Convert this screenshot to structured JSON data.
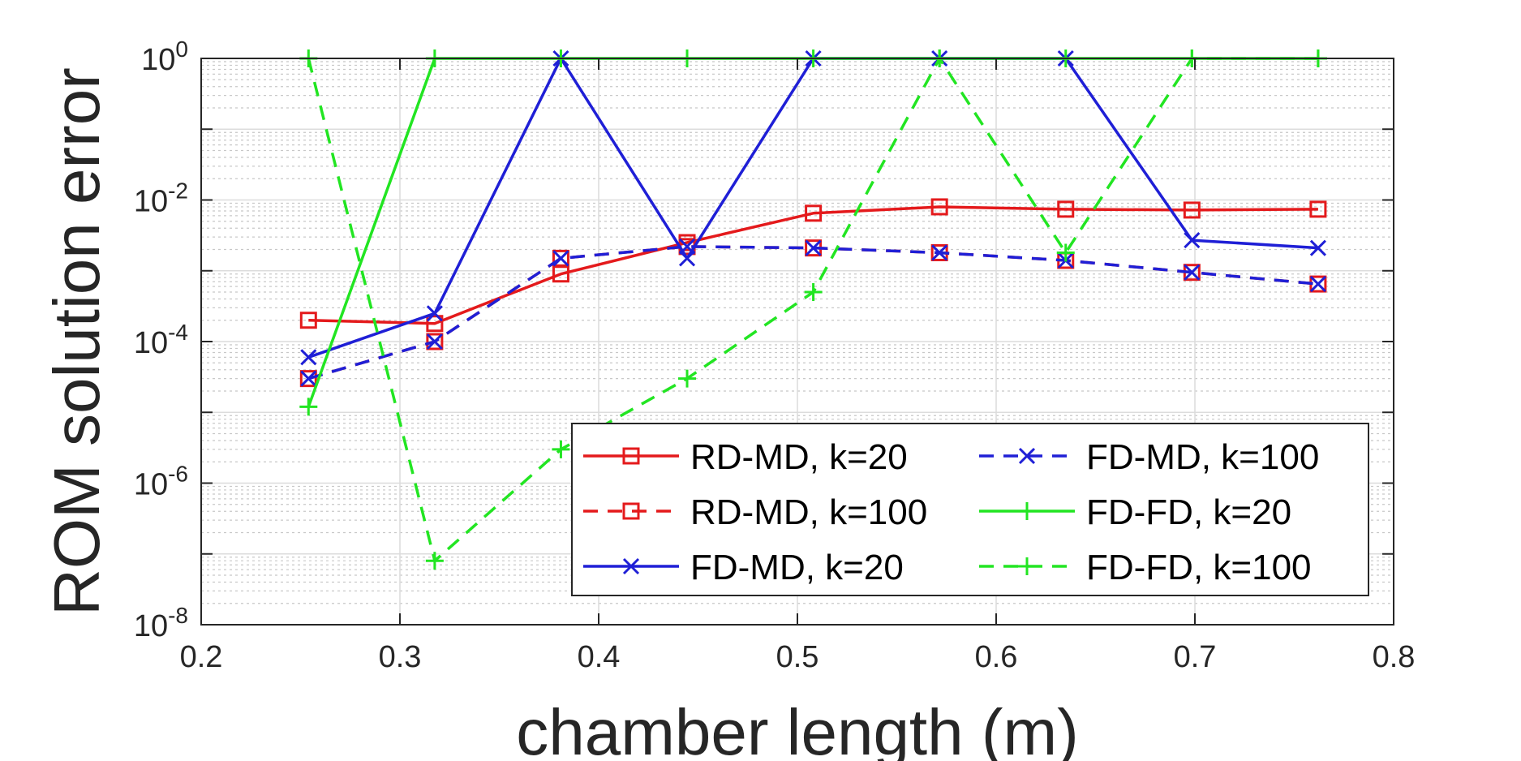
{
  "chart_data": {
    "type": "line",
    "xlabel": "chamber length (m)",
    "ylabel": "ROM solution error",
    "xlim": [
      0.2,
      0.8
    ],
    "ylim": [
      1e-08,
      1
    ],
    "yscale": "log",
    "grid": true,
    "minor_grid": true,
    "legend_position": "bottom-right",
    "legend_columns": 2,
    "x_ticks": [
      "0.2",
      "0.3",
      "0.4",
      "0.5",
      "0.6",
      "0.7",
      "0.8"
    ],
    "y_ticks": [
      {
        "base": "10",
        "exp": "0"
      },
      {
        "base": "10",
        "exp": "-2"
      },
      {
        "base": "10",
        "exp": "-4"
      },
      {
        "base": "10",
        "exp": "-6"
      },
      {
        "base": "10",
        "exp": "-8"
      }
    ],
    "x": [
      0.254,
      0.3175,
      0.381,
      0.4445,
      0.508,
      0.5715,
      0.635,
      0.6985,
      0.762
    ],
    "series": [
      {
        "name": "RD-MD, k=20",
        "color": "#e41a1c",
        "dash": "solid",
        "marker": "square",
        "values": [
          0.0002,
          0.00018,
          0.0009,
          0.0025,
          0.0065,
          0.008,
          0.0074,
          0.0072,
          0.0074
        ]
      },
      {
        "name": "RD-MD, k=100",
        "color": "#e41a1c",
        "dash": "dashed",
        "marker": "square",
        "values": [
          3e-05,
          0.0001,
          0.0015,
          0.0022,
          0.0021,
          0.0018,
          0.0014,
          0.00095,
          0.00065
        ]
      },
      {
        "name": "FD-MD, k=20",
        "color": "#1f1fd6",
        "dash": "solid",
        "marker": "x",
        "values": [
          6e-05,
          0.00025,
          1.0,
          0.0015,
          1.0,
          1.0,
          1.0,
          0.0027,
          0.0021
        ]
      },
      {
        "name": "FD-MD, k=100",
        "color": "#1f1fd6",
        "dash": "dashed",
        "marker": "x",
        "values": [
          3e-05,
          0.0001,
          0.0015,
          0.0022,
          0.0021,
          0.0018,
          0.0014,
          0.00095,
          0.00065
        ]
      },
      {
        "name": "FD-FD, k=20",
        "color": "#22e522",
        "dash": "solid",
        "marker": "plus",
        "values": [
          1.2e-05,
          1.0,
          1.0,
          1.0,
          1.0,
          1.0,
          1.0,
          1.0,
          1.0
        ]
      },
      {
        "name": "FD-FD, k=100",
        "color": "#22e522",
        "dash": "dashed",
        "marker": "plus",
        "values": [
          1.0,
          8e-08,
          3e-06,
          3e-05,
          0.0005,
          1.0,
          0.0018,
          1.0,
          1.0
        ]
      }
    ]
  }
}
